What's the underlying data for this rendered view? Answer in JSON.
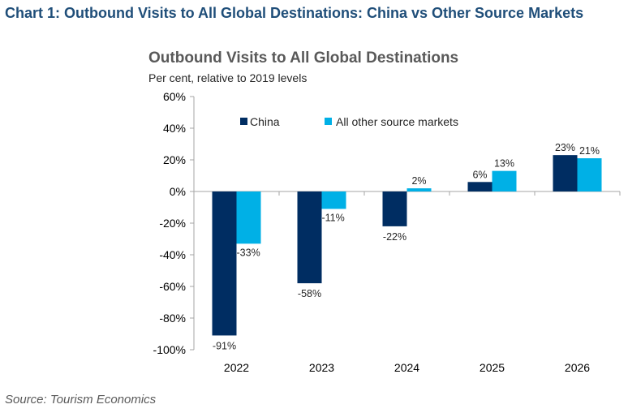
{
  "header": {
    "title": "Chart 1: Outbound Visits to All Global Destinations: China vs Other Source Markets"
  },
  "footer": {
    "source": "Source: Tourism Economics"
  },
  "chart_data": {
    "type": "bar",
    "title": "Outbound Visits to All Global Destinations",
    "subtitle": "Per cent, relative to 2019 levels",
    "xlabel": "",
    "ylabel": "",
    "categories": [
      "2022",
      "2023",
      "2024",
      "2025",
      "2026"
    ],
    "series": [
      {
        "name": "China",
        "color": "#002d62",
        "values": [
          -91,
          -58,
          -22,
          6,
          23
        ],
        "labels": [
          "-91%",
          "-58%",
          "-22%",
          "6%",
          "23%"
        ]
      },
      {
        "name": "All other source markets",
        "color": "#00b0e6",
        "values": [
          -33,
          -11,
          2,
          13,
          21
        ],
        "labels": [
          "-33%",
          "-11%",
          "2%",
          "13%",
          "21%"
        ]
      }
    ],
    "ylim": [
      -100,
      60
    ],
    "yticks": [
      60,
      40,
      20,
      0,
      -20,
      -40,
      -60,
      -80,
      -100
    ],
    "ytick_labels": [
      "60%",
      "40%",
      "20%",
      "0%",
      "-20%",
      "-40%",
      "-60%",
      "-80%",
      "-100%"
    ],
    "grid": false,
    "legend_position": "top"
  }
}
